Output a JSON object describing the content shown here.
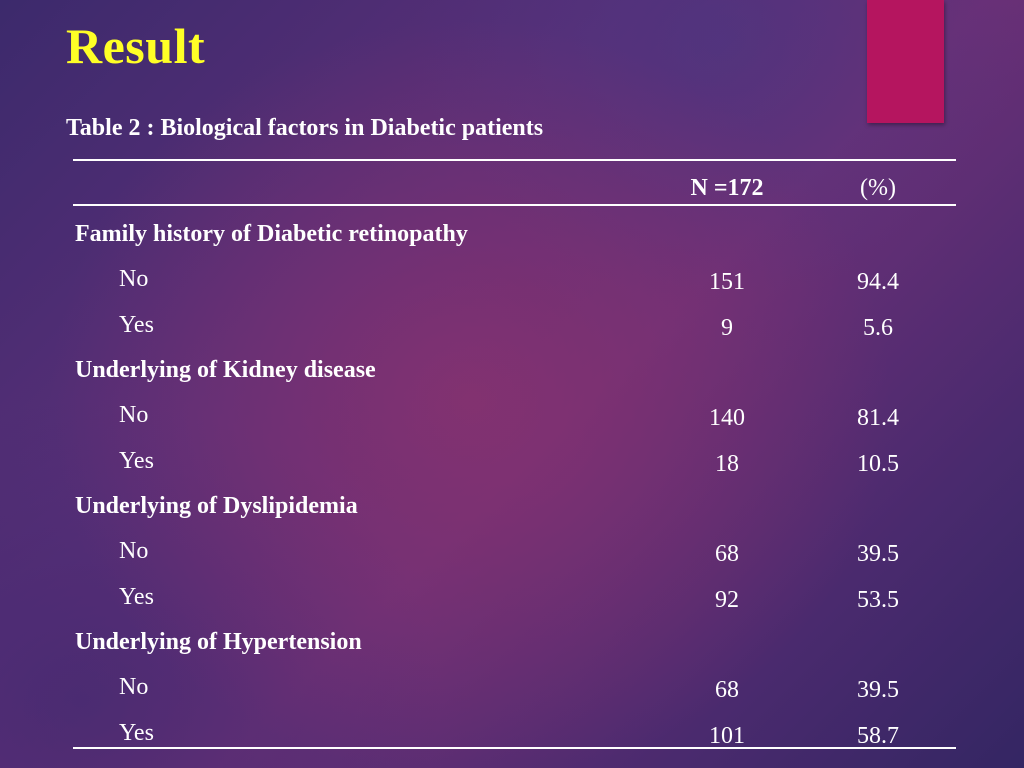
{
  "slide": {
    "title": "Result",
    "subtitle": "Table 2 : Biological factors in Diabetic patients"
  },
  "table": {
    "headers": {
      "count": "N =172",
      "percent": "(%)"
    },
    "groups": [
      {
        "label": "Family history of Diabetic retinopathy",
        "rows": [
          {
            "label": "No",
            "n": "151",
            "pct": "94.4"
          },
          {
            "label": "Yes",
            "n": "9",
            "pct": "5.6"
          }
        ]
      },
      {
        "label": "Underlying of Kidney disease",
        "rows": [
          {
            "label": "No",
            "n": "140",
            "pct": "81.4"
          },
          {
            "label": "Yes",
            "n": "18",
            "pct": "10.5"
          }
        ]
      },
      {
        "label": "Underlying of Dyslipidemia",
        "rows": [
          {
            "label": "No",
            "n": "68",
            "pct": "39.5"
          },
          {
            "label": "Yes",
            "n": "92",
            "pct": "53.5"
          }
        ]
      },
      {
        "label": "Underlying of Hypertension",
        "rows": [
          {
            "label": "No",
            "n": "68",
            "pct": "39.5"
          },
          {
            "label": "Yes",
            "n": "101",
            "pct": "58.7"
          }
        ]
      }
    ]
  },
  "colors": {
    "title": "#ffff26",
    "accent_bar": "#b5155f",
    "text": "#ffffff"
  }
}
